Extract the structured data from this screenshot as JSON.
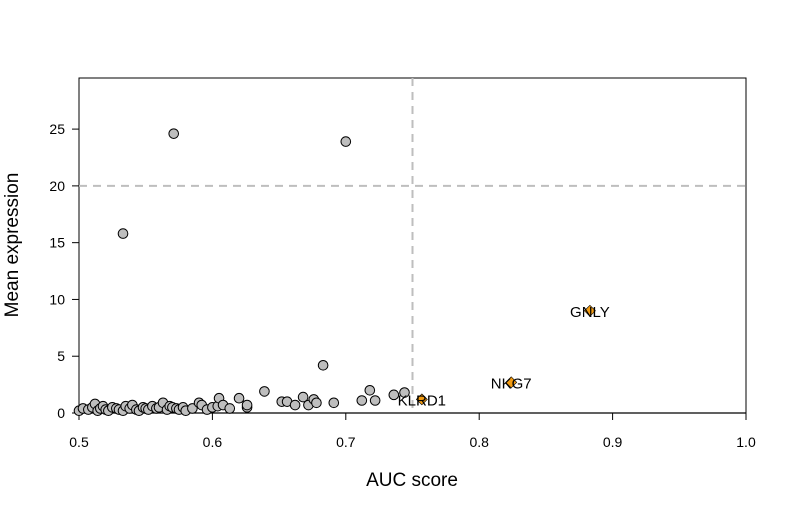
{
  "chart_data": {
    "type": "scatter",
    "title": "",
    "xlabel": "AUC score",
    "ylabel": "Mean expression",
    "xlim": [
      0.5,
      1.0
    ],
    "ylim": [
      0,
      29.5
    ],
    "xticks": [
      "0.5",
      "0.6",
      "0.7",
      "0.8",
      "0.9",
      "1.0"
    ],
    "yticks": [
      "0",
      "5",
      "10",
      "15",
      "20",
      "25"
    ],
    "thresholds": {
      "x": 0.75,
      "y": 20
    },
    "grid": false,
    "colors": {
      "background_point": "#bebebe",
      "highlight_point": "#f39c12",
      "threshold_line": "#bebebe"
    },
    "series": [
      {
        "marker": "circle",
        "x": [
          0.5,
          0.503,
          0.507,
          0.51,
          0.512,
          0.514,
          0.516,
          0.518,
          0.52,
          0.522,
          0.525,
          0.528,
          0.53,
          0.533,
          0.535,
          0.538,
          0.54,
          0.543,
          0.545,
          0.548,
          0.55,
          0.552,
          0.555,
          0.558,
          0.56,
          0.563,
          0.566,
          0.568,
          0.57,
          0.573,
          0.575,
          0.578,
          0.58,
          0.585,
          0.59,
          0.592,
          0.596,
          0.6,
          0.604,
          0.605,
          0.608,
          0.613,
          0.62,
          0.626,
          0.626,
          0.639,
          0.652,
          0.656,
          0.662,
          0.668,
          0.672,
          0.676,
          0.678,
          0.683,
          0.691,
          0.712,
          0.718,
          0.722,
          0.736,
          0.744,
          0.533,
          0.571,
          0.7
        ],
        "y": [
          0.2,
          0.4,
          0.3,
          0.5,
          0.8,
          0.2,
          0.4,
          0.6,
          0.3,
          0.2,
          0.5,
          0.4,
          0.3,
          0.2,
          0.6,
          0.4,
          0.7,
          0.3,
          0.2,
          0.5,
          0.4,
          0.3,
          0.6,
          0.4,
          0.5,
          0.9,
          0.3,
          0.6,
          0.5,
          0.4,
          0.3,
          0.5,
          0.2,
          0.4,
          0.9,
          0.7,
          0.3,
          0.5,
          0.6,
          1.3,
          0.7,
          0.4,
          1.3,
          0.5,
          0.7,
          1.9,
          1.0,
          1.0,
          0.7,
          1.4,
          0.7,
          1.2,
          0.9,
          4.2,
          0.9,
          1.1,
          2.0,
          1.1,
          1.6,
          1.8,
          15.8,
          24.6,
          23.9
        ]
      },
      {
        "marker": "diamond",
        "x": [
          0.883,
          0.824,
          0.757
        ],
        "y": [
          9.0,
          2.7,
          1.2
        ],
        "labels": [
          "GNLY",
          "NKG7",
          "KLRD1"
        ]
      }
    ]
  }
}
